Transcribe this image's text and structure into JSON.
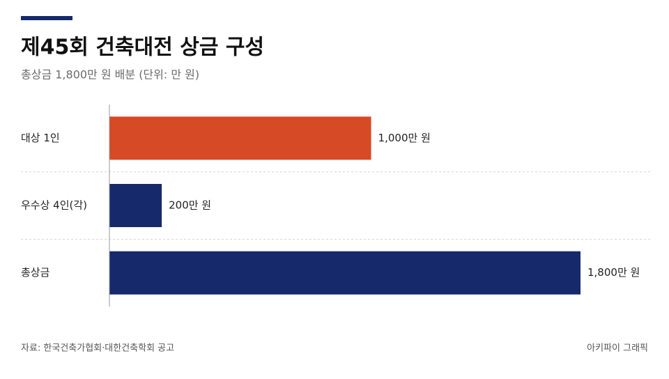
{
  "chart_data": {
    "type": "bar",
    "orientation": "horizontal",
    "title": "제45회 건축대전 상금 구성",
    "subtitle": "총상금 1,800만 원 배분 (단위: 만 원)",
    "categories": [
      "대상 1인",
      "우수상 4인(각)",
      "총상금"
    ],
    "values": [
      1000,
      200,
      1800
    ],
    "value_labels": [
      "1,000만 원",
      "200만 원",
      "1,800만 원"
    ],
    "colors": [
      "#d64a25",
      "#15296b",
      "#15296b"
    ],
    "source": "자료: 한국건축가협회·대한건축학회 공고",
    "credit": "아키파이 그래픽"
  }
}
